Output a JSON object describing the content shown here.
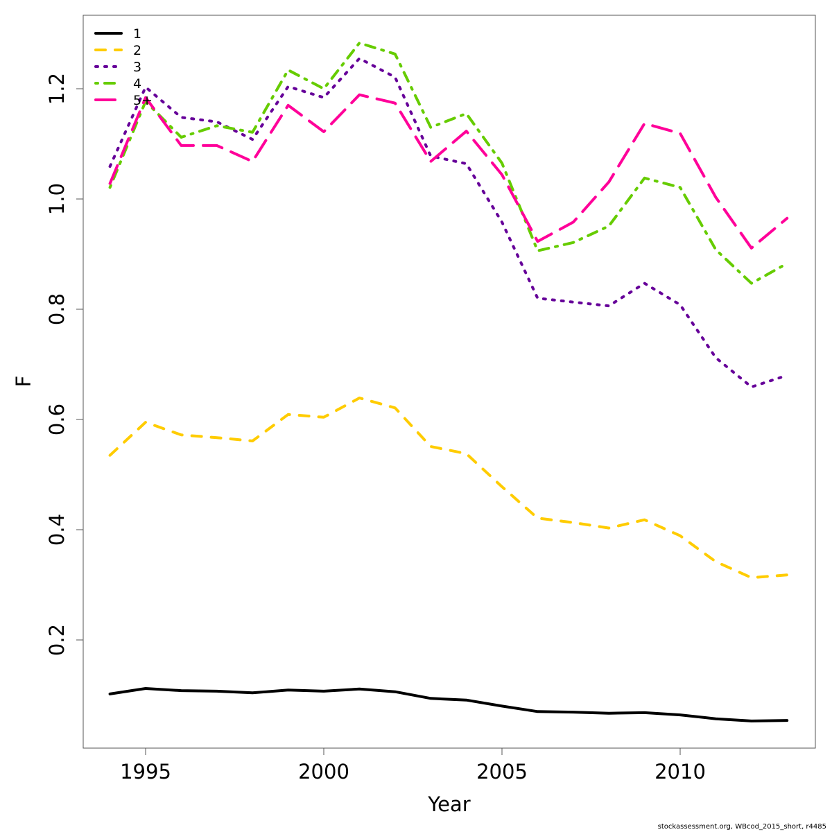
{
  "chart_data": {
    "type": "line",
    "title": "",
    "xlabel": "Year",
    "ylabel": "F",
    "xlim": [
      1993.25,
      2013.8
    ],
    "ylim": [
      0.03,
      1.33
    ],
    "x_ticks": [
      1995,
      2000,
      2005,
      2010
    ],
    "x_tick_labels": [
      "1995",
      "2000",
      "2005",
      "2010"
    ],
    "y_ticks": [
      0.2,
      0.4,
      0.6,
      0.8,
      1.0,
      1.2
    ],
    "y_tick_labels": [
      "0.2",
      "0.4",
      "0.6",
      "0.8",
      "1.0",
      "1.2"
    ],
    "grid": false,
    "legend_position": "top-left",
    "x": [
      1994,
      1995,
      1996,
      1997,
      1998,
      1999,
      2000,
      2001,
      2002,
      2003,
      2004,
      2005,
      2006,
      2007,
      2008,
      2009,
      2010,
      2011,
      2012,
      2013
    ],
    "series": [
      {
        "name": "1",
        "color": "#000000",
        "dash": "solid",
        "values": [
          0.102,
          0.112,
          0.108,
          0.107,
          0.104,
          0.109,
          0.107,
          0.111,
          0.106,
          0.094,
          0.091,
          0.08,
          0.07,
          0.069,
          0.067,
          0.068,
          0.064,
          0.057,
          0.053,
          0.054
        ]
      },
      {
        "name": "2",
        "color": "#FFCC00",
        "dash": "dashed",
        "values": [
          0.535,
          0.595,
          0.572,
          0.567,
          0.561,
          0.609,
          0.604,
          0.639,
          0.621,
          0.551,
          0.538,
          0.478,
          0.421,
          0.413,
          0.403,
          0.418,
          0.389,
          0.342,
          0.313,
          0.318
        ]
      },
      {
        "name": "3",
        "color": "#660099",
        "dash": "dotted",
        "values": [
          1.059,
          1.203,
          1.148,
          1.14,
          1.108,
          1.204,
          1.184,
          1.255,
          1.221,
          1.078,
          1.064,
          0.958,
          0.82,
          0.813,
          0.806,
          0.847,
          0.808,
          0.712,
          0.659,
          0.68
        ]
      },
      {
        "name": "4",
        "color": "#66CC00",
        "dash": "dotdash",
        "values": [
          1.021,
          1.177,
          1.112,
          1.133,
          1.121,
          1.234,
          1.2,
          1.283,
          1.263,
          1.13,
          1.155,
          1.065,
          0.906,
          0.921,
          0.951,
          1.038,
          1.021,
          0.908,
          0.847,
          0.883
        ]
      },
      {
        "name": "5+",
        "color": "#FF0099",
        "dash": "longdash",
        "values": [
          1.028,
          1.184,
          1.097,
          1.097,
          1.068,
          1.17,
          1.122,
          1.189,
          1.174,
          1.068,
          1.123,
          1.044,
          0.923,
          0.958,
          1.031,
          1.137,
          1.119,
          1.003,
          0.911,
          0.965
        ]
      }
    ]
  },
  "footer": "stockassessment.org, WBcod_2015_short, r4485"
}
